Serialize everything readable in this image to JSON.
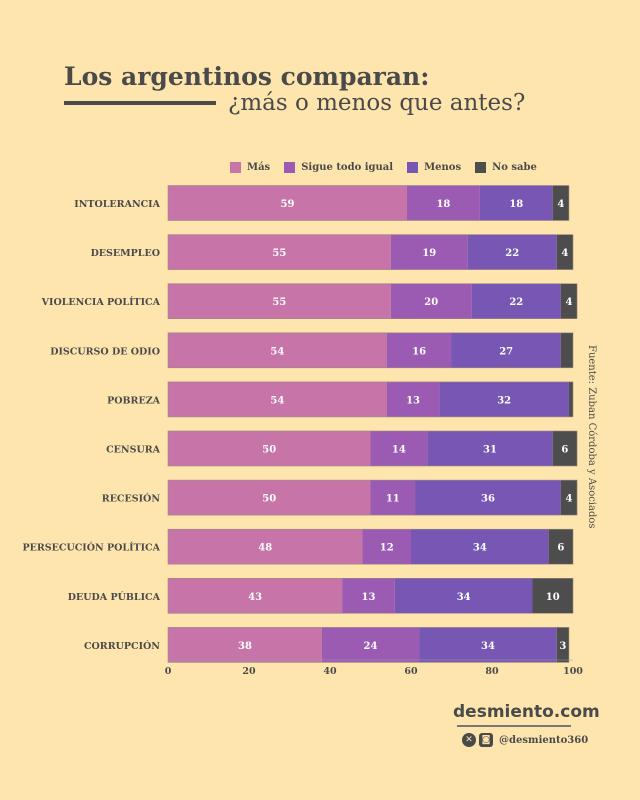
{
  "title": "Los argentinos comparan:",
  "subtitle": "¿más o menos que antes?",
  "source": "Fuente: Zuban Córdoba y Asociados",
  "brand": "desmiento.com",
  "handle": "@desmiento360",
  "icons": [
    "x-icon",
    "instagram-icon"
  ],
  "chart_data": {
    "type": "bar",
    "orientation": "horizontal-stacked",
    "categories": [
      "INTOLERANCIA",
      "DESEMPLEO",
      "VIOLENCIA POLÍTICA",
      "DISCURSO DE ODIO",
      "POBREZA",
      "CENSURA",
      "RECESIÓN",
      "PERSECUCIÓN POLÍTICA",
      "DEUDA PÚBLICA",
      "CORRUPCIÓN"
    ],
    "series": [
      {
        "name": "Más",
        "color": "#c774a8",
        "values": [
          59,
          55,
          55,
          54,
          54,
          50,
          50,
          48,
          43,
          38
        ]
      },
      {
        "name": "Sigue todo igual",
        "color": "#9b5bb3",
        "values": [
          18,
          19,
          20,
          16,
          13,
          14,
          11,
          12,
          13,
          24
        ]
      },
      {
        "name": "Menos",
        "color": "#7757b3",
        "values": [
          18,
          22,
          22,
          27,
          32,
          31,
          36,
          34,
          34,
          34
        ]
      },
      {
        "name": "No sabe",
        "color": "#4d4d4d",
        "values": [
          4,
          4,
          4,
          3,
          1,
          6,
          4,
          6,
          10,
          3
        ]
      }
    ],
    "hidden_labels": [
      [
        3,
        3
      ],
      [
        4,
        3
      ]
    ],
    "xlim": [
      0,
      100
    ],
    "xticks": [
      0,
      20,
      40,
      60,
      80,
      100
    ],
    "legend": "top"
  }
}
